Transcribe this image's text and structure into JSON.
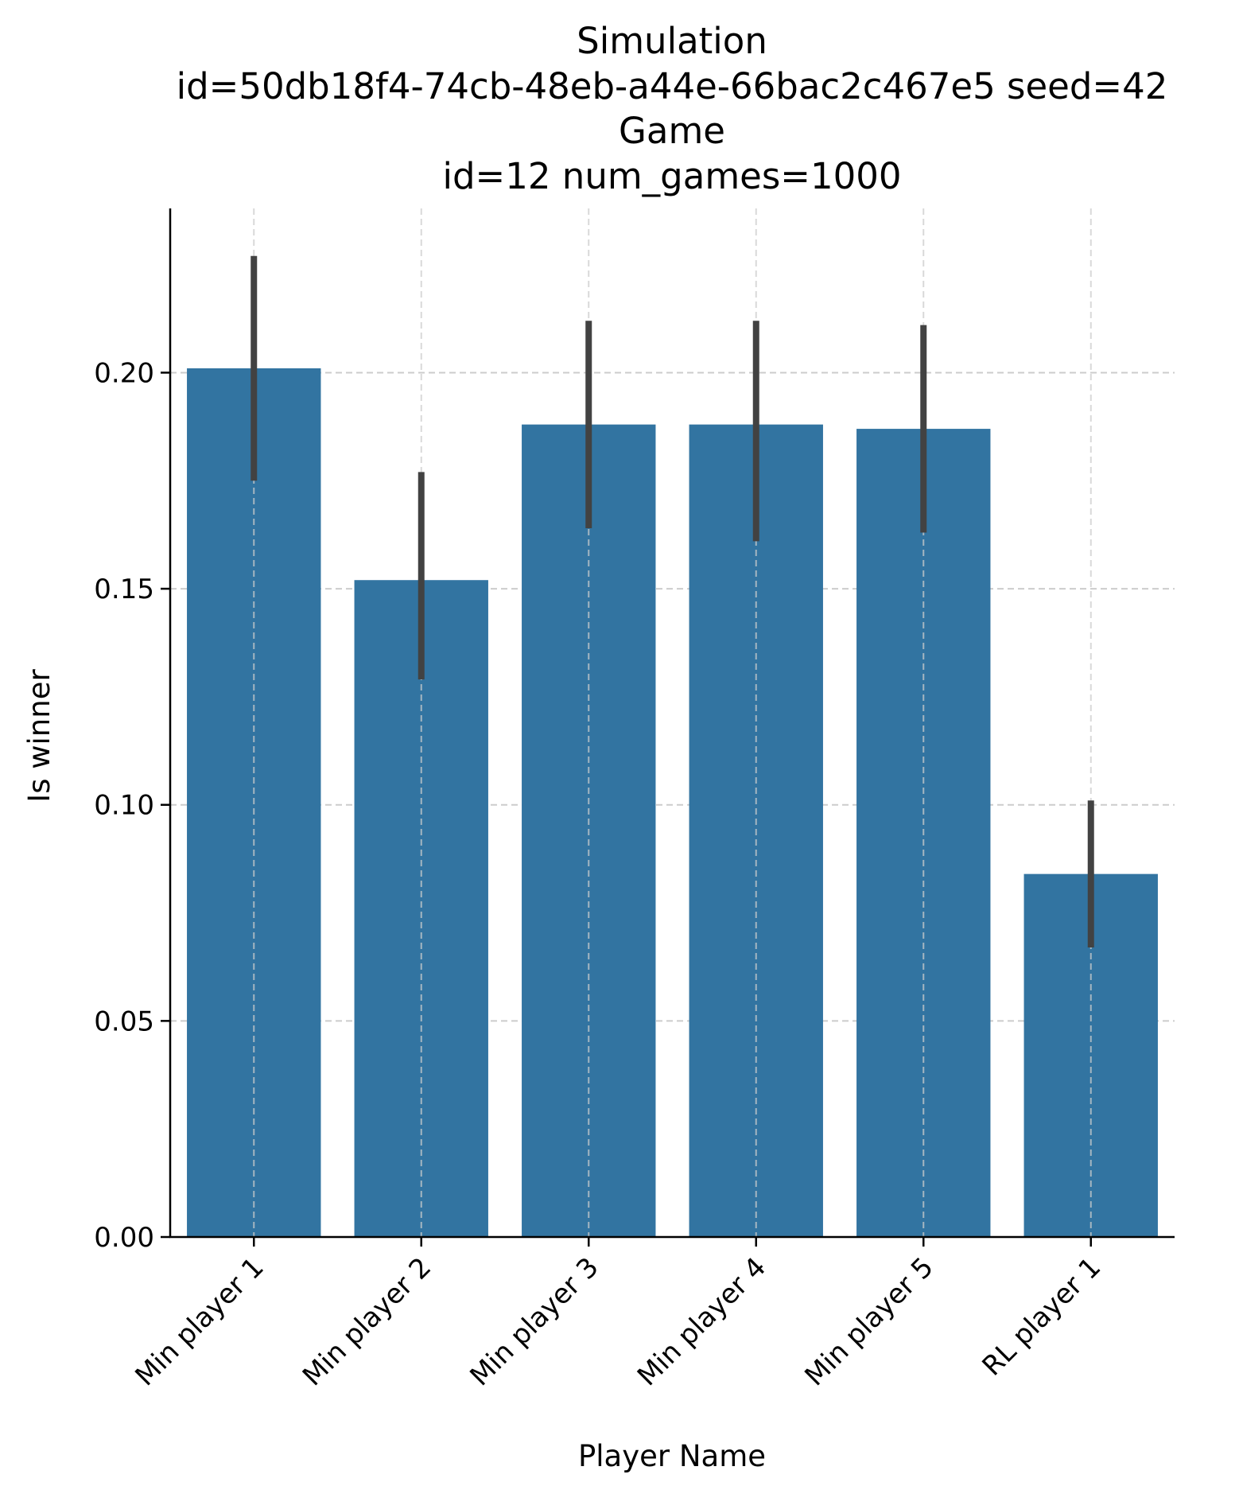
{
  "chart_data": {
    "type": "bar",
    "title_lines": [
      "Simulation",
      "id=50db18f4-74cb-48eb-a44e-66bac2c467e5 seed=42",
      "Game",
      "id=12 num_games=1000"
    ],
    "xlabel": "Player Name",
    "ylabel": "Is winner",
    "categories": [
      "Min player 1",
      "Min player 2",
      "Min player 3",
      "Min player 4",
      "Min player 5",
      "RL player 1"
    ],
    "values": [
      0.201,
      0.152,
      0.188,
      0.188,
      0.187,
      0.084
    ],
    "error_low": [
      0.175,
      0.129,
      0.164,
      0.161,
      0.163,
      0.067
    ],
    "error_high": [
      0.227,
      0.177,
      0.212,
      0.212,
      0.211,
      0.101
    ],
    "ylim": [
      0,
      0.238
    ],
    "yticks": [
      0.0,
      0.05,
      0.1,
      0.15,
      0.2
    ],
    "ytick_labels": [
      "0.00",
      "0.05",
      "0.10",
      "0.15",
      "0.20"
    ],
    "grid": true,
    "bar_color": "#3274a1",
    "error_color": "#424242",
    "grid_color": "#cccccc"
  }
}
